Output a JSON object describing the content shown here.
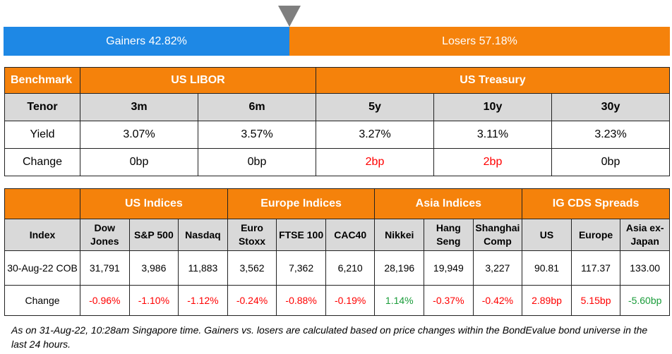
{
  "breadth": {
    "gainers_label": "Gainers 42.82%",
    "losers_label": "Losers 57.18%",
    "gainers_pct": 42.82,
    "losers_pct": 57.18,
    "gainers_color": "#1e88e5",
    "losers_color": "#f5820b"
  },
  "rates": {
    "header": [
      "Benchmark",
      "US LIBOR",
      "US Treasury"
    ],
    "tenor_label": "Tenor",
    "tenors": [
      "3m",
      "6m",
      "5y",
      "10y",
      "30y"
    ],
    "yield_label": "Yield",
    "yields": [
      "3.07%",
      "3.57%",
      "3.27%",
      "3.11%",
      "3.23%"
    ],
    "change_label": "Change",
    "changes": [
      "0bp",
      "0bp",
      "2bp",
      "2bp",
      "0bp"
    ]
  },
  "indices": {
    "groups": [
      "US Indices",
      "Europe Indices",
      "Asia Indices",
      "IG CDS Spreads"
    ],
    "index_label": "Index",
    "names": [
      "Dow Jones",
      "S&P 500",
      "Nasdaq",
      "Euro Stoxx",
      "FTSE 100",
      "CAC40",
      "Nikkei",
      "Hang Seng",
      "Shanghai Comp",
      "US",
      "Europe",
      "Asia ex-Japan"
    ],
    "date_label": "30-Aug-22 COB",
    "values": [
      "31,791",
      "3,986",
      "11,883",
      "3,562",
      "7,362",
      "6,210",
      "28,196",
      "19,949",
      "3,227",
      "90.81",
      "117.37",
      "133.00"
    ],
    "change_label": "Change",
    "changes": [
      "-0.96%",
      "-1.10%",
      "-1.12%",
      "-0.24%",
      "-0.88%",
      "-0.19%",
      "1.14%",
      "-0.37%",
      "-0.42%",
      "2.89bp",
      "5.15bp",
      "-5.60bp"
    ],
    "change_colors": [
      "red",
      "red",
      "red",
      "red",
      "red",
      "red",
      "green",
      "red",
      "red",
      "red",
      "red",
      "green"
    ]
  },
  "footnote": "As on 31-Aug-22, 10:28am Singapore time. Gainers vs. losers are calculated based on price changes within the BondEvalue bond universe in the last 24 hours."
}
